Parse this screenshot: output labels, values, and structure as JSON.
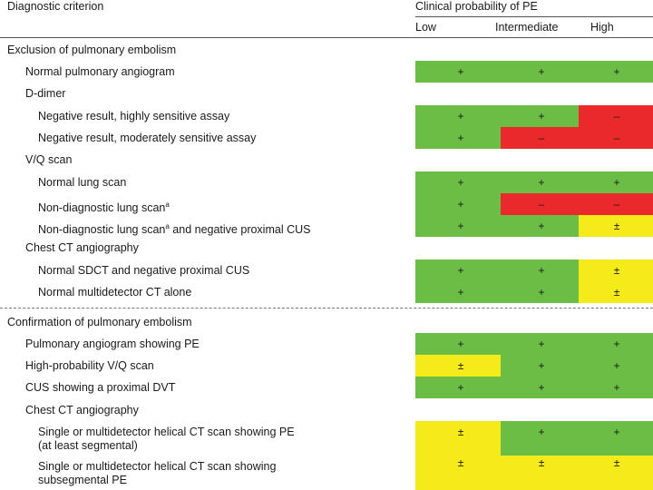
{
  "header": {
    "criterion": "Diagnostic criterion",
    "probability": "Clinical probability of PE",
    "low": "Low",
    "intermediate": "Intermediate",
    "high": "High"
  },
  "sections": {
    "exclusion": "Exclusion of pulmonary embolism",
    "confirmation": "Confirmation of pulmonary embolism"
  },
  "rows": [
    {
      "label": "Normal pulmonary angiogram",
      "low": "+",
      "intermediate": "+",
      "high": "+"
    },
    {
      "label": "D-dimer"
    },
    {
      "label": "Negative result, highly sensitive assay",
      "low": "+",
      "intermediate": "+",
      "high": "–"
    },
    {
      "label": "Negative result, moderately sensitive assay",
      "low": "+",
      "intermediate": "–",
      "high": "–"
    },
    {
      "label": "V/Q scan"
    },
    {
      "label": "Normal lung scan",
      "low": "+",
      "intermediate": "+",
      "high": "+"
    },
    {
      "label": "Non-diagnostic lung scan",
      "sup": "a",
      "low": "+",
      "intermediate": "–",
      "high": "–"
    },
    {
      "label": "Non-diagnostic lung scan",
      "sup": "a",
      "label_rest": " and negative proximal CUS",
      "low": "+",
      "intermediate": "+",
      "high": "±"
    },
    {
      "label": "Chest CT angiography"
    },
    {
      "label": "Normal SDCT and negative proximal CUS",
      "low": "+",
      "intermediate": "+",
      "high": "±"
    },
    {
      "label": "Normal multidetector CT alone",
      "low": "+",
      "intermediate": "+",
      "high": "±"
    },
    {
      "label": "Pulmonary angiogram showing PE",
      "low": "+",
      "intermediate": "+",
      "high": "+"
    },
    {
      "label": "High-probability V/Q scan",
      "low": "±",
      "intermediate": "+",
      "high": "+"
    },
    {
      "label": "CUS showing a proximal DVT",
      "low": "+",
      "intermediate": "+",
      "high": "+"
    },
    {
      "label": "Chest CT angiography"
    },
    {
      "label": "Single or multidetector helical CT scan showing PE",
      "label2": "(at least segmental)",
      "low": "±",
      "intermediate": "+",
      "high": "+"
    },
    {
      "label": "Single or multidetector helical CT scan showing",
      "label2": "subsegmental PE",
      "low": "±",
      "intermediate": "±",
      "high": "±"
    }
  ],
  "colors": {
    "green": "#6cbd45",
    "red": "#ea2a2a",
    "yellow": "#f5eb1a"
  }
}
